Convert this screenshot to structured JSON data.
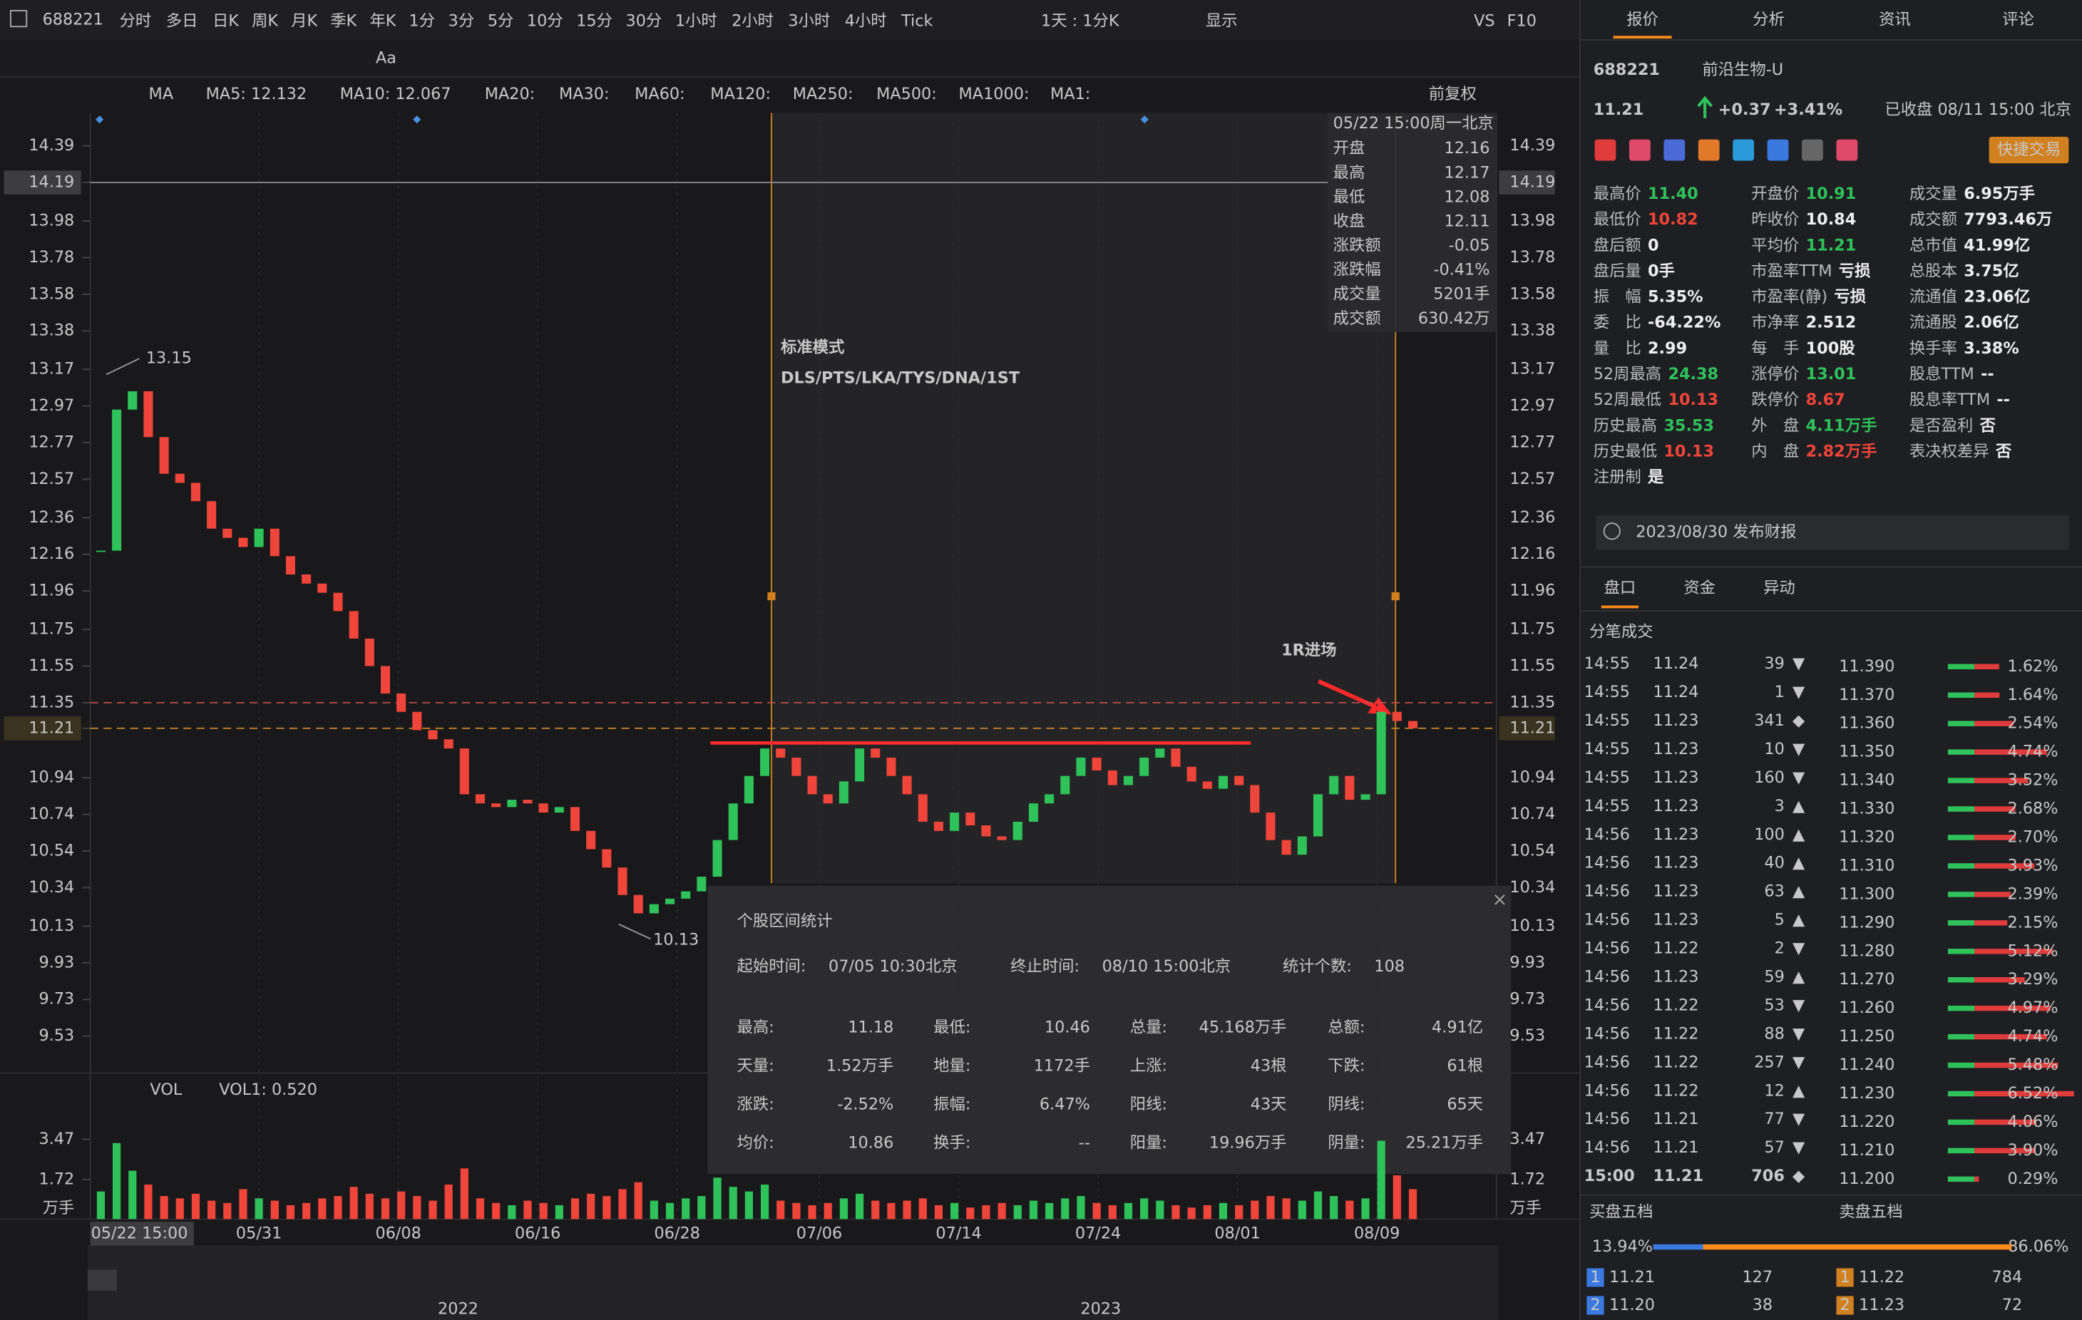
{
  "toolbar": {
    "symbol": "688221",
    "periods": [
      "分时",
      "多日",
      "日K",
      "周K",
      "月K",
      "季K",
      "年K",
      "1分",
      "3分",
      "5分",
      "10分",
      "15分",
      "30分",
      "1小时",
      "2小时",
      "3小时",
      "4小时",
      "Tick"
    ],
    "active_period": "1小时",
    "range": "1天 : 1分K",
    "display": "显示",
    "vs": "VS",
    "f10": "F10",
    "tool_text": "Aa"
  },
  "tabs": [
    "报价",
    "分析",
    "资讯",
    "评论"
  ],
  "active_tab": "报价",
  "ma_bar": {
    "label": "MA",
    "items": [
      {
        "text": "MA5: 12.132",
        "color": "#e0463c"
      },
      {
        "text": "MA10: 12.067",
        "color": "#3fa0ff"
      },
      {
        "text": "MA20:",
        "color": "#c04aa0"
      },
      {
        "text": "MA30:",
        "color": "#3a6fd8"
      },
      {
        "text": "MA60:",
        "color": "#3fbf6a"
      },
      {
        "text": "MA120:",
        "color": "#d05a5a"
      },
      {
        "text": "MA250:",
        "color": "#3ac0c0"
      },
      {
        "text": "MA500:",
        "color": "#c0a030"
      },
      {
        "text": "MA1000:",
        "color": "#8a6ad8"
      },
      {
        "text": "MA1:",
        "color": "#777777"
      }
    ],
    "adjust": "前复权"
  },
  "price_chart": {
    "closes": [
      12.18,
      12.95,
      13.05,
      12.8,
      12.6,
      12.55,
      12.45,
      12.3,
      12.25,
      12.2,
      12.3,
      12.15,
      12.05,
      12.0,
      11.95,
      11.85,
      11.7,
      11.55,
      11.4,
      11.3,
      11.2,
      11.15,
      11.1,
      10.85,
      10.8,
      10.78,
      10.82,
      10.8,
      10.75,
      10.78,
      10.65,
      10.55,
      10.45,
      10.3,
      10.2,
      10.25,
      10.28,
      10.32,
      10.4,
      10.6,
      10.8,
      10.95,
      11.1,
      11.05,
      10.95,
      10.85,
      10.8,
      10.92,
      11.1,
      11.05,
      10.95,
      10.85,
      10.7,
      10.65,
      10.75,
      10.68,
      10.62,
      10.6,
      10.7,
      10.8,
      10.85,
      10.95,
      11.05,
      10.98,
      10.9,
      10.95,
      11.05,
      11.1,
      11.0,
      10.92,
      10.88,
      10.95,
      10.9,
      10.75,
      10.6,
      10.52,
      10.62,
      10.85,
      10.95,
      10.82,
      10.85,
      11.3,
      11.25,
      11.21
    ],
    "ylim": [
      9.35,
      14.57
    ],
    "yticks": [
      14.39,
      14.19,
      13.98,
      13.78,
      13.58,
      13.38,
      13.17,
      12.97,
      12.77,
      12.57,
      12.36,
      12.16,
      11.96,
      11.75,
      11.55,
      11.35,
      11.21,
      10.94,
      10.74,
      10.54,
      10.34,
      10.13,
      9.93,
      9.73,
      9.53
    ],
    "up_color": "#2fc25b",
    "down_color": "#f0453a",
    "crosshair": 14.19,
    "last_price": 11.21,
    "dashed_level": 11.35,
    "drawn_line": 11.13,
    "high_label": 13.15,
    "low_label": 10.13,
    "x_labels": [
      "05/22 15:00",
      "05/31",
      "06/08",
      "06/16",
      "06/28",
      "07/06",
      "07/14",
      "07/24",
      "08/01",
      "08/09"
    ]
  },
  "tooltip": {
    "datetime": "05/22 15:00周一北京",
    "rows": [
      {
        "label": "开盘",
        "value": "12.16",
        "color": "#f0453a"
      },
      {
        "label": "最高",
        "value": "12.17",
        "color": "#2fc25b"
      },
      {
        "label": "最低",
        "value": "12.08",
        "color": "#f0453a"
      },
      {
        "label": "收盘",
        "value": "12.11",
        "color": "#f0453a"
      },
      {
        "label": "涨跌额",
        "value": "-0.05",
        "color": "#f0453a"
      },
      {
        "label": "涨跌幅",
        "value": "-0.41%",
        "color": "#f0453a"
      },
      {
        "label": "成交量",
        "value": "5201手",
        "color": "#bbbbbb"
      },
      {
        "label": "成交额",
        "value": "630.42万",
        "color": "#bbbbbb"
      }
    ]
  },
  "annotation": {
    "title": "标准模式",
    "patterns": "DLS/PTS/LKA/TYS/DNA/1ST",
    "entry": "1R进场"
  },
  "volume": {
    "label": "VOL",
    "vol1": "VOL1: 0.520",
    "unit": "万手",
    "ylim": [
      0,
      4.5
    ],
    "yticks": [
      3.47,
      1.72
    ],
    "values": [
      1.2,
      3.3,
      2.1,
      1.5,
      1.0,
      0.9,
      1.1,
      0.8,
      0.7,
      1.3,
      0.9,
      0.8,
      0.6,
      0.7,
      0.9,
      1.0,
      1.4,
      1.1,
      0.9,
      1.2,
      1.0,
      0.8,
      1.5,
      2.2,
      0.9,
      0.7,
      0.6,
      0.8,
      0.7,
      0.6,
      0.9,
      1.1,
      1.0,
      1.3,
      1.6,
      0.8,
      0.7,
      0.9,
      1.0,
      1.8,
      1.4,
      1.2,
      1.5,
      0.8,
      0.7,
      0.6,
      0.7,
      0.9,
      1.1,
      0.8,
      0.7,
      0.8,
      0.9,
      0.6,
      0.7,
      0.5,
      0.6,
      0.7,
      0.6,
      0.8,
      0.7,
      0.9,
      1.0,
      0.7,
      0.6,
      0.7,
      0.9,
      0.8,
      0.6,
      0.5,
      0.6,
      0.7,
      0.6,
      0.8,
      1.0,
      0.9,
      0.8,
      1.2,
      1.0,
      0.8,
      0.9,
      3.4,
      1.9,
      1.3
    ]
  },
  "timeline": {
    "years": [
      "2022",
      "2023"
    ]
  },
  "stats": {
    "title": "个股区间统计",
    "start_label": "起始时间:",
    "start": "07/05 10:30北京",
    "end_label": "终止时间:",
    "end": "08/10 15:00北京",
    "count_label": "统计个数:",
    "count": 108,
    "cells": [
      [
        {
          "label": "最高:",
          "value": "11.18",
          "color": "#2fc25b"
        },
        {
          "label": "最低:",
          "value": "10.46",
          "color": "#f0453a"
        },
        {
          "label": "总量:",
          "value": "45.168万手",
          "color": "#dddddd"
        },
        {
          "label": "总额:",
          "value": "4.91亿",
          "color": "#dddddd"
        }
      ],
      [
        {
          "label": "天量:",
          "value": "1.52万手",
          "color": "#dddddd"
        },
        {
          "label": "地量:",
          "value": "1172手",
          "color": "#dddddd"
        },
        {
          "label": "上涨:",
          "value": "43根",
          "color": "#2fc25b"
        },
        {
          "label": "下跌:",
          "value": "61根",
          "color": "#f0453a"
        }
      ],
      [
        {
          "label": "涨跌:",
          "value": "-2.52%",
          "color": "#f0453a"
        },
        {
          "label": "振幅:",
          "value": "6.47%",
          "color": "#dddddd"
        },
        {
          "label": "阳线:",
          "value": "43天",
          "color": "#2fc25b"
        },
        {
          "label": "阴线:",
          "value": "65天",
          "color": "#f0453a"
        }
      ],
      [
        {
          "label": "均价:",
          "value": "10.86",
          "color": "#f0453a"
        },
        {
          "label": "换手:",
          "value": "--",
          "color": "#dddddd"
        },
        {
          "label": "阳量:",
          "value": "19.96万手",
          "color": "#2fc25b"
        },
        {
          "label": "阴量:",
          "value": "25.21万手",
          "color": "#f0453a"
        }
      ]
    ]
  },
  "quote": {
    "code": "688221",
    "name": "前沿生物-U",
    "price": "11.21",
    "change": "+0.37",
    "change_pct": "+3.41%",
    "status": "已收盘 08/11 15:00 北京",
    "quick_trade": "快捷交易"
  },
  "fundamentals": [
    [
      {
        "label": "最高价",
        "value": "11.40",
        "color": "#2fc25b"
      },
      {
        "label": "最低价",
        "value": "10.82",
        "color": "#f0453a"
      },
      {
        "label": "盘后额",
        "value": "0",
        "color": "#eeeeee"
      },
      {
        "label": "盘后量",
        "value": "0手",
        "color": "#eeeeee"
      },
      {
        "label": "振　幅",
        "value": "5.35%",
        "color": "#eeeeee"
      },
      {
        "label": "委　比",
        "value": "-64.22%",
        "color": "#eeeeee"
      },
      {
        "label": "量　比",
        "value": "2.99",
        "color": "#eeeeee"
      },
      {
        "label": "52周最高",
        "value": "24.38",
        "color": "#2fc25b"
      },
      {
        "label": "52周最低",
        "value": "10.13",
        "color": "#f0453a"
      },
      {
        "label": "历史最高",
        "value": "35.53",
        "color": "#2fc25b"
      },
      {
        "label": "历史最低",
        "value": "10.13",
        "color": "#f0453a"
      },
      {
        "label": "注册制",
        "value": "是",
        "color": "#eeeeee"
      }
    ],
    [
      {
        "label": "开盘价",
        "value": "10.91",
        "color": "#2fc25b"
      },
      {
        "label": "昨收价",
        "value": "10.84",
        "color": "#eeeeee"
      },
      {
        "label": "平均价",
        "value": "11.21",
        "color": "#2fc25b"
      },
      {
        "label": "市盈率TTM",
        "value": "亏损",
        "color": "#eeeeee"
      },
      {
        "label": "市盈率(静)",
        "value": "亏损",
        "color": "#eeeeee"
      },
      {
        "label": "市净率",
        "value": "2.512",
        "color": "#eeeeee"
      },
      {
        "label": "每　手",
        "value": "100股",
        "color": "#eeeeee"
      },
      {
        "label": "涨停价",
        "value": "13.01",
        "color": "#2fc25b"
      },
      {
        "label": "跌停价",
        "value": "8.67",
        "color": "#f0453a"
      },
      {
        "label": "外　盘",
        "value": "4.11万手",
        "color": "#2fc25b"
      },
      {
        "label": "内　盘",
        "value": "2.82万手",
        "color": "#f0453a"
      }
    ],
    [
      {
        "label": "成交量",
        "value": "6.95万手",
        "color": "#eeeeee"
      },
      {
        "label": "成交额",
        "value": "7793.46万",
        "color": "#eeeeee"
      },
      {
        "label": "总市值",
        "value": "41.99亿",
        "color": "#eeeeee"
      },
      {
        "label": "总股本",
        "value": "3.75亿",
        "color": "#eeeeee"
      },
      {
        "label": "流通值",
        "value": "23.06亿",
        "color": "#eeeeee"
      },
      {
        "label": "流通股",
        "value": "2.06亿",
        "color": "#eeeeee"
      },
      {
        "label": "换手率",
        "value": "3.38%",
        "color": "#eeeeee"
      },
      {
        "label": "股息TTM",
        "value": "--",
        "color": "#eeeeee"
      },
      {
        "label": "股息率TTM",
        "value": "--",
        "color": "#eeeeee"
      },
      {
        "label": "是否盈利",
        "value": "否",
        "color": "#eeeeee"
      },
      {
        "label": "表决权差异",
        "value": "否",
        "color": "#eeeeee"
      }
    ]
  ],
  "report": "2023/08/30  发布财报",
  "subtabs": [
    "盘口",
    "资金",
    "异动"
  ],
  "trades": {
    "title": "分笔成交",
    "rows": [
      {
        "time": "14:55",
        "price": "11.24",
        "volume": 39,
        "dir": "▼",
        "color": "#f0453a"
      },
      {
        "time": "14:55",
        "price": "11.24",
        "volume": 1,
        "dir": "▼",
        "color": "#f0453a"
      },
      {
        "time": "14:55",
        "price": "11.23",
        "volume": 341,
        "dir": "◆",
        "color": "#dddddd"
      },
      {
        "time": "14:55",
        "price": "11.23",
        "volume": 10,
        "dir": "▼",
        "color": "#f0453a"
      },
      {
        "time": "14:55",
        "price": "11.23",
        "volume": 160,
        "dir": "▼",
        "color": "#f0453a"
      },
      {
        "time": "14:55",
        "price": "11.23",
        "volume": 3,
        "dir": "▲",
        "color": "#2fc25b"
      },
      {
        "time": "14:56",
        "price": "11.23",
        "volume": 100,
        "dir": "▲",
        "color": "#2fc25b"
      },
      {
        "time": "14:56",
        "price": "11.23",
        "volume": 40,
        "dir": "▲",
        "color": "#2fc25b"
      },
      {
        "time": "14:56",
        "price": "11.23",
        "volume": 63,
        "dir": "▲",
        "color": "#2fc25b"
      },
      {
        "time": "14:56",
        "price": "11.23",
        "volume": 5,
        "dir": "▲",
        "color": "#2fc25b"
      },
      {
        "time": "14:56",
        "price": "11.22",
        "volume": 2,
        "dir": "▼",
        "color": "#f0453a"
      },
      {
        "time": "14:56",
        "price": "11.23",
        "volume": 59,
        "dir": "▲",
        "color": "#2fc25b"
      },
      {
        "time": "14:56",
        "price": "11.22",
        "volume": 53,
        "dir": "▼",
        "color": "#f0453a"
      },
      {
        "time": "14:56",
        "price": "11.22",
        "volume": 88,
        "dir": "▼",
        "color": "#f0453a"
      },
      {
        "time": "14:56",
        "price": "11.22",
        "volume": 257,
        "dir": "▼",
        "color": "#f0453a"
      },
      {
        "time": "14:56",
        "price": "11.22",
        "volume": 12,
        "dir": "▲",
        "color": "#2fc25b"
      },
      {
        "time": "14:56",
        "price": "11.21",
        "volume": 77,
        "dir": "▼",
        "color": "#f0453a"
      },
      {
        "time": "14:56",
        "price": "11.21",
        "volume": 57,
        "dir": "▼",
        "color": "#f0453a"
      },
      {
        "time": "15:00",
        "price": "11.21",
        "volume": 706,
        "dir": "◆",
        "color": "#dddddd"
      }
    ],
    "levels": {
      "prices": [
        "11.390",
        "11.370",
        "11.360",
        "11.350",
        "11.340",
        "11.330",
        "11.320",
        "11.310",
        "11.300",
        "11.290",
        "11.280",
        "11.270",
        "11.260",
        "11.250",
        "11.240",
        "11.230",
        "11.220",
        "11.210",
        "11.200"
      ],
      "values": [
        1.62,
        1.64,
        2.54,
        4.74,
        3.52,
        2.68,
        2.7,
        3.93,
        2.39,
        2.15,
        5.12,
        3.29,
        4.97,
        4.74,
        5.48,
        6.52,
        4.06,
        3.9,
        0.29
      ],
      "value_labels": [
        "1.62%",
        "1.64%",
        "2.54%",
        "4.74%",
        "3.52%",
        "2.68%",
        "2.70%",
        "3.93%",
        "2.39%",
        "2.15%",
        "5.12%",
        "3.29%",
        "4.97%",
        "4.74%",
        "5.48%",
        "6.52%",
        "4.06%",
        "3.90%",
        "0.29%"
      ]
    }
  },
  "book": {
    "buy_title": "买盘五档",
    "sell_title": "卖盘五档",
    "buy_ratio": 13.94,
    "buy_ratio_label": "13.94%",
    "sell_ratio": 86.06,
    "sell_ratio_label": "86.06%",
    "buy": [
      {
        "level": "1",
        "price": "11.21",
        "volume": 127
      },
      {
        "level": "2",
        "price": "11.20",
        "volume": 38
      }
    ],
    "sell": [
      {
        "level": "1",
        "price": "11.22",
        "volume": 784
      },
      {
        "level": "2",
        "price": "11.23",
        "volume": 72
      }
    ]
  }
}
